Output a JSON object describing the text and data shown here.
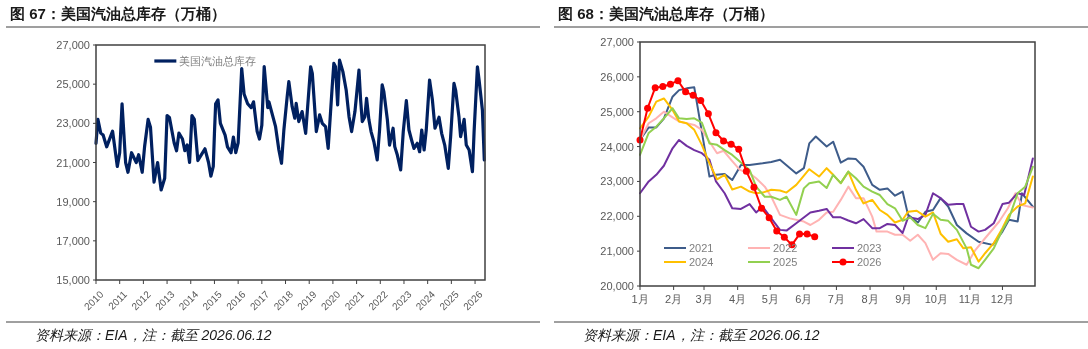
{
  "chart_data": [
    {
      "type": "line",
      "title": "图 67：美国汽油总库存（万桶）",
      "legend": "top",
      "xlim": [
        2010,
        2026.42
      ],
      "xticks": [
        2010,
        2011,
        2012,
        2013,
        2014,
        2015,
        2016,
        2017,
        2018,
        2019,
        2020,
        2021,
        2022,
        2023,
        2024,
        2025,
        2026
      ],
      "ylim": [
        15000,
        27000
      ],
      "yticks": [
        {
          "value": 15000,
          "label": "15,000"
        },
        {
          "value": 17000,
          "label": "17,000"
        },
        {
          "value": 19000,
          "label": "19,000"
        },
        {
          "value": 21000,
          "label": "21,000"
        },
        {
          "value": 23000,
          "label": "23,000"
        },
        {
          "value": 25000,
          "label": "25,000"
        },
        {
          "value": 27000,
          "label": "27,000"
        }
      ],
      "x": [
        2010.0,
        2010.08,
        2010.2,
        2010.3,
        2010.45,
        2010.7,
        2010.9,
        2011.0,
        2011.1,
        2011.25,
        2011.35,
        2011.5,
        2011.7,
        2011.8,
        2011.95,
        2012.05,
        2012.2,
        2012.3,
        2012.45,
        2012.6,
        2012.75,
        2012.9,
        2013.0,
        2013.1,
        2013.3,
        2013.4,
        2013.5,
        2013.65,
        2013.75,
        2013.85,
        2013.95,
        2014.05,
        2014.15,
        2014.3,
        2014.45,
        2014.6,
        2014.75,
        2014.85,
        2014.95,
        2015.0,
        2015.05,
        2015.15,
        2015.25,
        2015.45,
        2015.55,
        2015.7,
        2015.8,
        2015.9,
        2016.0,
        2016.15,
        2016.25,
        2016.4,
        2016.55,
        2016.65,
        2016.8,
        2016.9,
        2017.0,
        2017.1,
        2017.25,
        2017.3,
        2017.58,
        2017.72,
        2017.83,
        2017.93,
        2018.07,
        2018.14,
        2018.28,
        2018.39,
        2018.45,
        2018.56,
        2018.7,
        2018.85,
        2019.06,
        2019.13,
        2019.3,
        2019.44,
        2019.55,
        2019.69,
        2019.8,
        2019.97,
        2020.04,
        2020.11,
        2020.2,
        2020.28,
        2020.42,
        2020.56,
        2020.68,
        2020.79,
        2020.93,
        2021.1,
        2021.17,
        2021.24,
        2021.35,
        2021.42,
        2021.52,
        2021.61,
        2021.73,
        2021.87,
        2021.97,
        2022.08,
        2022.15,
        2022.3,
        2022.39,
        2022.54,
        2022.61,
        2022.72,
        2022.86,
        2022.97,
        2023.1,
        2023.21,
        2023.32,
        2023.42,
        2023.56,
        2023.66,
        2023.75,
        2023.85,
        2023.94,
        2024.08,
        2024.2,
        2024.31,
        2024.48,
        2024.59,
        2024.72,
        2024.87,
        2024.97,
        2025.11,
        2025.18,
        2025.32,
        2025.39,
        2025.54,
        2025.63,
        2025.75,
        2025.89,
        2025.96,
        2026.1,
        2026.17,
        2026.31,
        2026.39
      ],
      "series": [
        {
          "name": "美国汽油总库存",
          "color": "#002060",
          "values": [
            21980,
            23200,
            22500,
            22400,
            21800,
            22600,
            20800,
            21500,
            24000,
            21000,
            20500,
            21500,
            21000,
            21400,
            20500,
            21800,
            23200,
            22800,
            20000,
            21000,
            19600,
            20200,
            23400,
            23300,
            22000,
            21600,
            22500,
            22200,
            21600,
            21900,
            21000,
            23400,
            23200,
            21100,
            21400,
            21700,
            21000,
            20300,
            20800,
            22500,
            24000,
            24200,
            23000,
            22400,
            21800,
            21500,
            22300,
            21500,
            22000,
            25800,
            24500,
            24000,
            23800,
            24100,
            22600,
            22200,
            22900,
            25900,
            23800,
            24100,
            22830,
            21640,
            20960,
            22660,
            24360,
            25130,
            23850,
            23260,
            24020,
            23090,
            23600,
            22490,
            25890,
            25550,
            22580,
            23430,
            23000,
            22830,
            21720,
            24870,
            26060,
            25890,
            23940,
            26230,
            25640,
            24700,
            23340,
            22580,
            23600,
            25720,
            24200,
            23090,
            23340,
            24280,
            23180,
            22580,
            22060,
            21130,
            22660,
            24960,
            24620,
            23170,
            21890,
            22750,
            21810,
            21380,
            20620,
            22580,
            24160,
            22660,
            22150,
            21720,
            21980,
            21550,
            22660,
            21640,
            22660,
            25210,
            24190,
            22750,
            23310,
            22490,
            21890,
            20700,
            22320,
            25040,
            24700,
            23340,
            22320,
            23200,
            21890,
            21640,
            20530,
            22580,
            25890,
            25210,
            23680,
            21130
          ]
        }
      ],
      "annotations": [
        "资料来源：EIA，注：截至 2026.06.12"
      ]
    },
    {
      "type": "line",
      "title": "图 68：美国汽油总库存（万桶）",
      "legend": "bottom left",
      "xlim": [
        "--01-01",
        "--12-31"
      ],
      "xticks": [
        {
          "value": "--01-01",
          "label": "1月"
        },
        {
          "value": "--02-01",
          "label": "2月"
        },
        {
          "value": "--03-01",
          "label": "3月"
        },
        {
          "value": "--04-01",
          "label": "4月"
        },
        {
          "value": "--05-01",
          "label": "5月"
        },
        {
          "value": "--06-01",
          "label": "6月"
        },
        {
          "value": "--07-01",
          "label": "7月"
        },
        {
          "value": "--08-01",
          "label": "8月"
        },
        {
          "value": "--09-01",
          "label": "9月"
        },
        {
          "value": "--10-01",
          "label": "10月"
        },
        {
          "value": "--11-01",
          "label": "11月"
        },
        {
          "value": "--12-01",
          "label": "12月"
        }
      ],
      "ylim": [
        20000,
        27000
      ],
      "yticks": [
        {
          "value": 20000,
          "label": "20,000"
        },
        {
          "value": 21000,
          "label": "21,000"
        },
        {
          "value": 22000,
          "label": "22,000"
        },
        {
          "value": 23000,
          "label": "23,000"
        },
        {
          "value": 24000,
          "label": "24,000"
        },
        {
          "value": 25000,
          "label": "25,000"
        },
        {
          "value": 26000,
          "label": "26,000"
        },
        {
          "value": 27000,
          "label": "27,000"
        }
      ],
      "series": [
        {
          "name": "2021",
          "color": "#3e5c8a",
          "x": [
            "--01-01",
            "--01-09",
            "--01-16",
            "--01-23",
            "--01-31",
            "--02-06",
            "--02-13",
            "--02-20",
            "--03-06",
            "--03-12",
            "--03-20",
            "--03-27",
            "--04-04",
            "--04-12",
            "--04-24",
            "--05-02",
            "--05-10",
            "--05-25",
            "--06-01",
            "--06-06",
            "--06-12",
            "--06-22",
            "--06-28",
            "--07-05",
            "--07-12",
            "--07-19",
            "--07-26",
            "--08-03",
            "--08-10",
            "--08-17",
            "--08-24",
            "--08-31",
            "--09-05",
            "--09-14",
            "--09-21",
            "--09-28",
            "--10-05",
            "--10-12",
            "--10-20",
            "--10-29",
            "--11-09",
            "--11-22",
            "--12-01",
            "--12-07",
            "--12-15",
            "--12-19",
            "--12-29"
          ],
          "values": [
            24190,
            24550,
            24550,
            24800,
            25430,
            25620,
            25670,
            25700,
            23140,
            23190,
            23210,
            23040,
            23470,
            23470,
            23520,
            23560,
            23620,
            23230,
            23380,
            24090,
            24290,
            24000,
            24140,
            23540,
            23660,
            23640,
            23420,
            22900,
            22760,
            22800,
            22590,
            22710,
            22040,
            21820,
            22130,
            22180,
            22520,
            22280,
            21750,
            21510,
            21270,
            21180,
            21560,
            21900,
            21850,
            22660,
            22280
          ]
        },
        {
          "name": "2022",
          "color": "#ffb3b3",
          "x": [
            "--01-01",
            "--01-09",
            "--01-16",
            "--01-23",
            "--01-31",
            "--02-06",
            "--02-13",
            "--02-20",
            "--02-27",
            "--03-05",
            "--03-13",
            "--03-19",
            "--03-26",
            "--04-03",
            "--04-12",
            "--04-18",
            "--04-26",
            "--05-02",
            "--05-10",
            "--05-19",
            "--06-01",
            "--06-07",
            "--06-15",
            "--06-22",
            "--06-28",
            "--07-05",
            "--07-12",
            "--07-19",
            "--07-26",
            "--08-03",
            "--08-07",
            "--08-17",
            "--08-24",
            "--08-31",
            "--09-07",
            "--09-14",
            "--09-21",
            "--09-28",
            "--10-05",
            "--10-12",
            "--10-20",
            "--10-29",
            "--11-06",
            "--11-15",
            "--11-28",
            "--12-06",
            "--12-13",
            "--12-19",
            "--12-29"
          ],
          "values": [
            24190,
            24670,
            24810,
            25000,
            24840,
            24720,
            24670,
            24620,
            24480,
            24190,
            23810,
            23880,
            23620,
            23330,
            23230,
            23090,
            22850,
            22560,
            22040,
            21940,
            21850,
            21750,
            21900,
            22110,
            22130,
            22470,
            22850,
            22520,
            22520,
            21990,
            21560,
            21560,
            21470,
            21470,
            21300,
            21470,
            21230,
            20750,
            20940,
            20920,
            20750,
            20610,
            21030,
            21370,
            21850,
            22230,
            22660,
            22320,
            22250
          ]
        },
        {
          "name": "2023",
          "color": "#7030a0",
          "x": [
            "--01-01",
            "--01-09",
            "--01-16",
            "--01-23",
            "--01-31",
            "--02-06",
            "--02-13",
            "--02-20",
            "--02-27",
            "--03-06",
            "--03-12",
            "--03-20",
            "--03-27",
            "--04-04",
            "--04-12",
            "--04-18",
            "--04-24",
            "--05-02",
            "--05-10",
            "--05-16",
            "--05-25",
            "--06-07",
            "--06-15",
            "--06-22",
            "--06-28",
            "--07-05",
            "--07-12",
            "--07-19",
            "--07-26",
            "--08-03",
            "--08-10",
            "--08-17",
            "--08-24",
            "--08-31",
            "--09-05",
            "--09-14",
            "--09-21",
            "--09-28",
            "--10-05",
            "--10-12",
            "--10-20",
            "--10-26",
            "--11-02",
            "--11-09",
            "--11-15",
            "--11-23",
            "--12-01",
            "--12-07",
            "--12-15",
            "--12-21",
            "--12-29"
          ],
          "values": [
            22660,
            23000,
            23190,
            23450,
            23950,
            24190,
            24020,
            23900,
            23810,
            23620,
            23000,
            22660,
            22230,
            22210,
            22350,
            22110,
            22280,
            21940,
            21610,
            21590,
            21800,
            22110,
            22160,
            22210,
            21970,
            21970,
            21880,
            21800,
            21920,
            21660,
            21660,
            21780,
            21750,
            21520,
            21970,
            21920,
            22040,
            22660,
            22520,
            22330,
            22350,
            22350,
            21700,
            21560,
            21610,
            21800,
            22350,
            22390,
            22660,
            22610,
            23660
          ]
        },
        {
          "name": "2024",
          "color": "#ffc000",
          "x": [
            "--01-01",
            "--01-09",
            "--01-16",
            "--01-23",
            "--01-31",
            "--02-06",
            "--02-13",
            "--02-20",
            "--02-27",
            "--03-06",
            "--03-13",
            "--03-20",
            "--03-27",
            "--04-04",
            "--04-12",
            "--04-18",
            "--04-24",
            "--05-02",
            "--05-10",
            "--05-16",
            "--05-25",
            "--06-06",
            "--06-15",
            "--06-22",
            "--06-28",
            "--07-05",
            "--07-12",
            "--07-19",
            "--07-26",
            "--08-03",
            "--08-10",
            "--08-17",
            "--08-24",
            "--08-31",
            "--09-05",
            "--09-13",
            "--09-21",
            "--09-28",
            "--10-05",
            "--10-12",
            "--10-20",
            "--10-26",
            "--11-02",
            "--11-09",
            "--11-15",
            "--11-23",
            "--12-01",
            "--12-07",
            "--12-15",
            "--12-22",
            "--12-29"
          ],
          "values": [
            24520,
            24860,
            25290,
            25380,
            25050,
            24720,
            24670,
            24480,
            24050,
            23520,
            23060,
            23190,
            22770,
            22850,
            22710,
            22660,
            22680,
            22760,
            22740,
            22680,
            22900,
            23350,
            23140,
            23380,
            23190,
            22950,
            23280,
            22760,
            22370,
            22470,
            22180,
            22040,
            21820,
            21900,
            22130,
            22160,
            21990,
            22110,
            21500,
            21270,
            21340,
            21080,
            21110,
            20700,
            20940,
            21230,
            21660,
            22040,
            22280,
            22370,
            23140
          ]
        },
        {
          "name": "2025",
          "color": "#92d050",
          "x": [
            "--01-01",
            "--01-09",
            "--01-16",
            "--01-23",
            "--01-31",
            "--02-06",
            "--02-13",
            "--02-20",
            "--02-27",
            "--03-06",
            "--03-13",
            "--03-20",
            "--03-27",
            "--04-04",
            "--04-12",
            "--04-18",
            "--04-26",
            "--05-02",
            "--05-10",
            "--05-16",
            "--05-25",
            "--06-01",
            "--06-06",
            "--06-15",
            "--06-22",
            "--06-28",
            "--07-05",
            "--07-12",
            "--07-19",
            "--07-26",
            "--08-03",
            "--08-10",
            "--08-17",
            "--08-24",
            "--08-31",
            "--09-07",
            "--09-14",
            "--09-21",
            "--09-28",
            "--10-05",
            "--10-12",
            "--10-20",
            "--10-29",
            "--11-02",
            "--11-09",
            "--11-15",
            "--11-23",
            "--12-01",
            "--12-07",
            "--12-15",
            "--12-22",
            "--12-29"
          ],
          "values": [
            23760,
            24390,
            24570,
            24810,
            25100,
            24810,
            24790,
            24810,
            24690,
            24090,
            24050,
            23900,
            23760,
            23540,
            23330,
            22850,
            22560,
            22560,
            22470,
            22560,
            22040,
            22800,
            22950,
            23000,
            22810,
            23190,
            22950,
            23280,
            23090,
            22850,
            22710,
            22610,
            22350,
            22230,
            21870,
            21970,
            21750,
            21660,
            22070,
            21900,
            21870,
            21610,
            21080,
            20610,
            20510,
            20750,
            21080,
            21610,
            21940,
            22660,
            22850,
            23420
          ]
        },
        {
          "name": "2026",
          "color": "#ff0000",
          "marker": "circle",
          "x": [
            "--01-01",
            "--01-08",
            "--01-15",
            "--01-22",
            "--01-29",
            "--02-05",
            "--02-12",
            "--02-19",
            "--02-26",
            "--03-05",
            "--03-12",
            "--03-19",
            "--03-26",
            "--04-02",
            "--04-09",
            "--04-16",
            "--04-23",
            "--04-30",
            "--05-07",
            "--05-14",
            "--05-21",
            "--05-28",
            "--06-04",
            "--06-11"
          ],
          "values": [
            24190,
            25100,
            25690,
            25720,
            25790,
            25890,
            25570,
            25470,
            25320,
            24940,
            24400,
            24160,
            24070,
            23920,
            23290,
            22830,
            22230,
            21960,
            21580,
            21400,
            21180,
            21490,
            21490,
            21410
          ]
        }
      ],
      "annotations": [
        "资料来源：EIA，注：截至 2026.06.12"
      ]
    }
  ]
}
